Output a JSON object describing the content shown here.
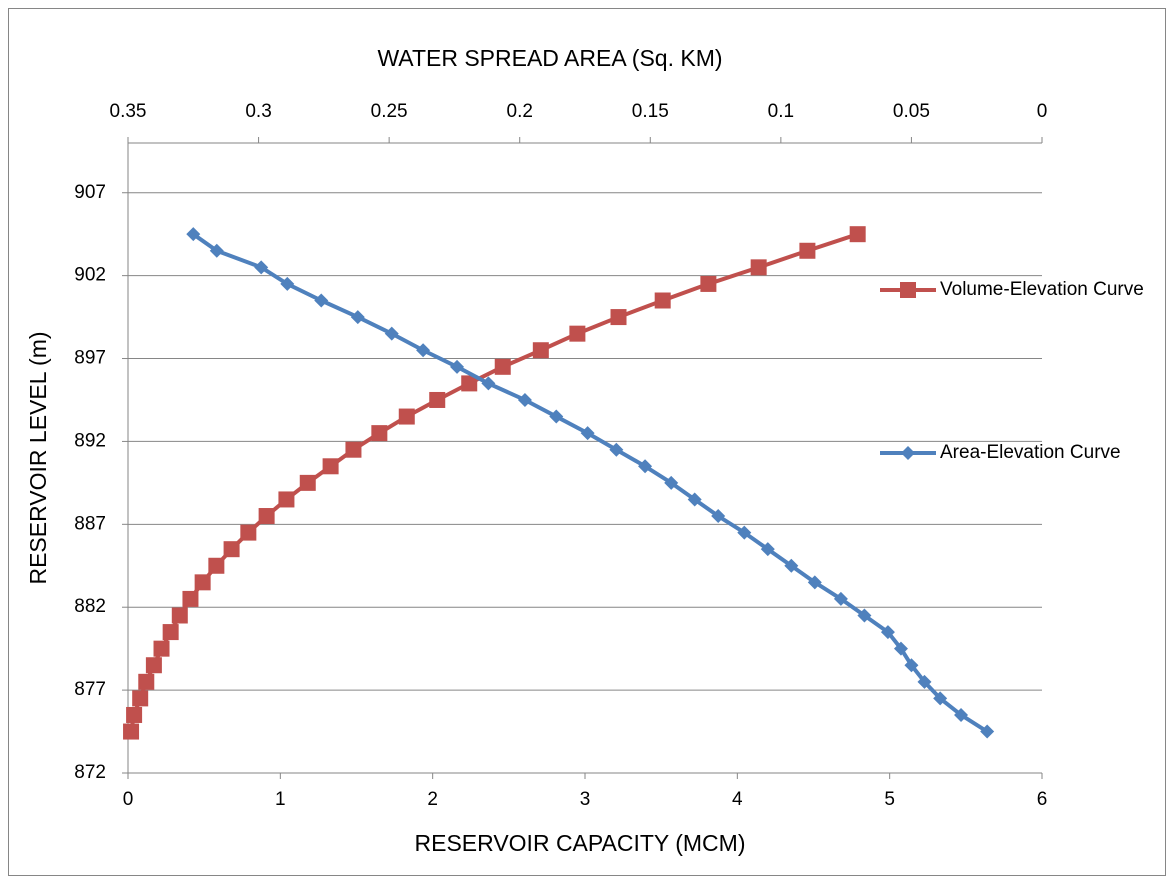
{
  "chart_data": {
    "type": "line",
    "title": "WATER SPREAD AREA (Sq. KM)",
    "x_label": "RESERVOIR CAPACITY (MCM)",
    "y_label": "RESERVOIR LEVEL (m)",
    "xlim": [
      0,
      6
    ],
    "xticks": [
      0,
      1,
      2,
      3,
      4,
      5,
      6
    ],
    "x2lim": [
      0.35,
      0
    ],
    "x2ticks": [
      0.35,
      0.3,
      0.25,
      0.2,
      0.15,
      0.1,
      0.05,
      0
    ],
    "ylim": [
      872,
      910
    ],
    "yticks": [
      872,
      877,
      882,
      887,
      892,
      897,
      902,
      907
    ],
    "grid": true,
    "legend": "right",
    "series": [
      {
        "name": "Volume-Elevation Curve",
        "color": "#c0504d",
        "marker": "square",
        "x": [
          0.02,
          0.04,
          0.08,
          0.12,
          0.17,
          0.22,
          0.28,
          0.34,
          0.41,
          0.49,
          0.58,
          0.68,
          0.79,
          0.91,
          1.04,
          1.18,
          1.33,
          1.48,
          1.65,
          1.83,
          2.03,
          2.24,
          2.46,
          2.71,
          2.95,
          3.22,
          3.51,
          3.81,
          4.14,
          4.46,
          4.79
        ],
        "y": [
          874.5,
          875.5,
          876.5,
          877.5,
          878.5,
          879.5,
          880.5,
          881.5,
          882.5,
          883.5,
          884.5,
          885.5,
          886.5,
          887.5,
          888.5,
          889.5,
          890.5,
          891.5,
          892.5,
          893.5,
          894.5,
          895.5,
          896.5,
          897.5,
          898.5,
          899.5,
          900.5,
          901.5,
          902.5,
          903.5,
          904.5
        ]
      },
      {
        "name": "Area-Elevation Curve",
        "color": "#4f81bd",
        "marker": "diamond",
        "axis": "x2",
        "x": [
          0.021,
          0.031,
          0.039,
          0.045,
          0.05,
          0.054,
          0.059,
          0.068,
          0.077,
          0.087,
          0.096,
          0.105,
          0.114,
          0.124,
          0.133,
          0.142,
          0.152,
          0.163,
          0.174,
          0.186,
          0.198,
          0.212,
          0.224,
          0.237,
          0.249,
          0.262,
          0.276,
          0.289,
          0.299,
          0.316,
          0.325
        ],
        "y": [
          874.5,
          875.5,
          876.5,
          877.5,
          878.5,
          879.5,
          880.5,
          881.5,
          882.5,
          883.5,
          884.5,
          885.5,
          886.5,
          887.5,
          888.5,
          889.5,
          890.5,
          891.5,
          892.5,
          893.5,
          894.5,
          895.5,
          896.5,
          897.5,
          898.5,
          899.5,
          900.5,
          901.5,
          902.5,
          903.5,
          904.5
        ]
      }
    ]
  }
}
